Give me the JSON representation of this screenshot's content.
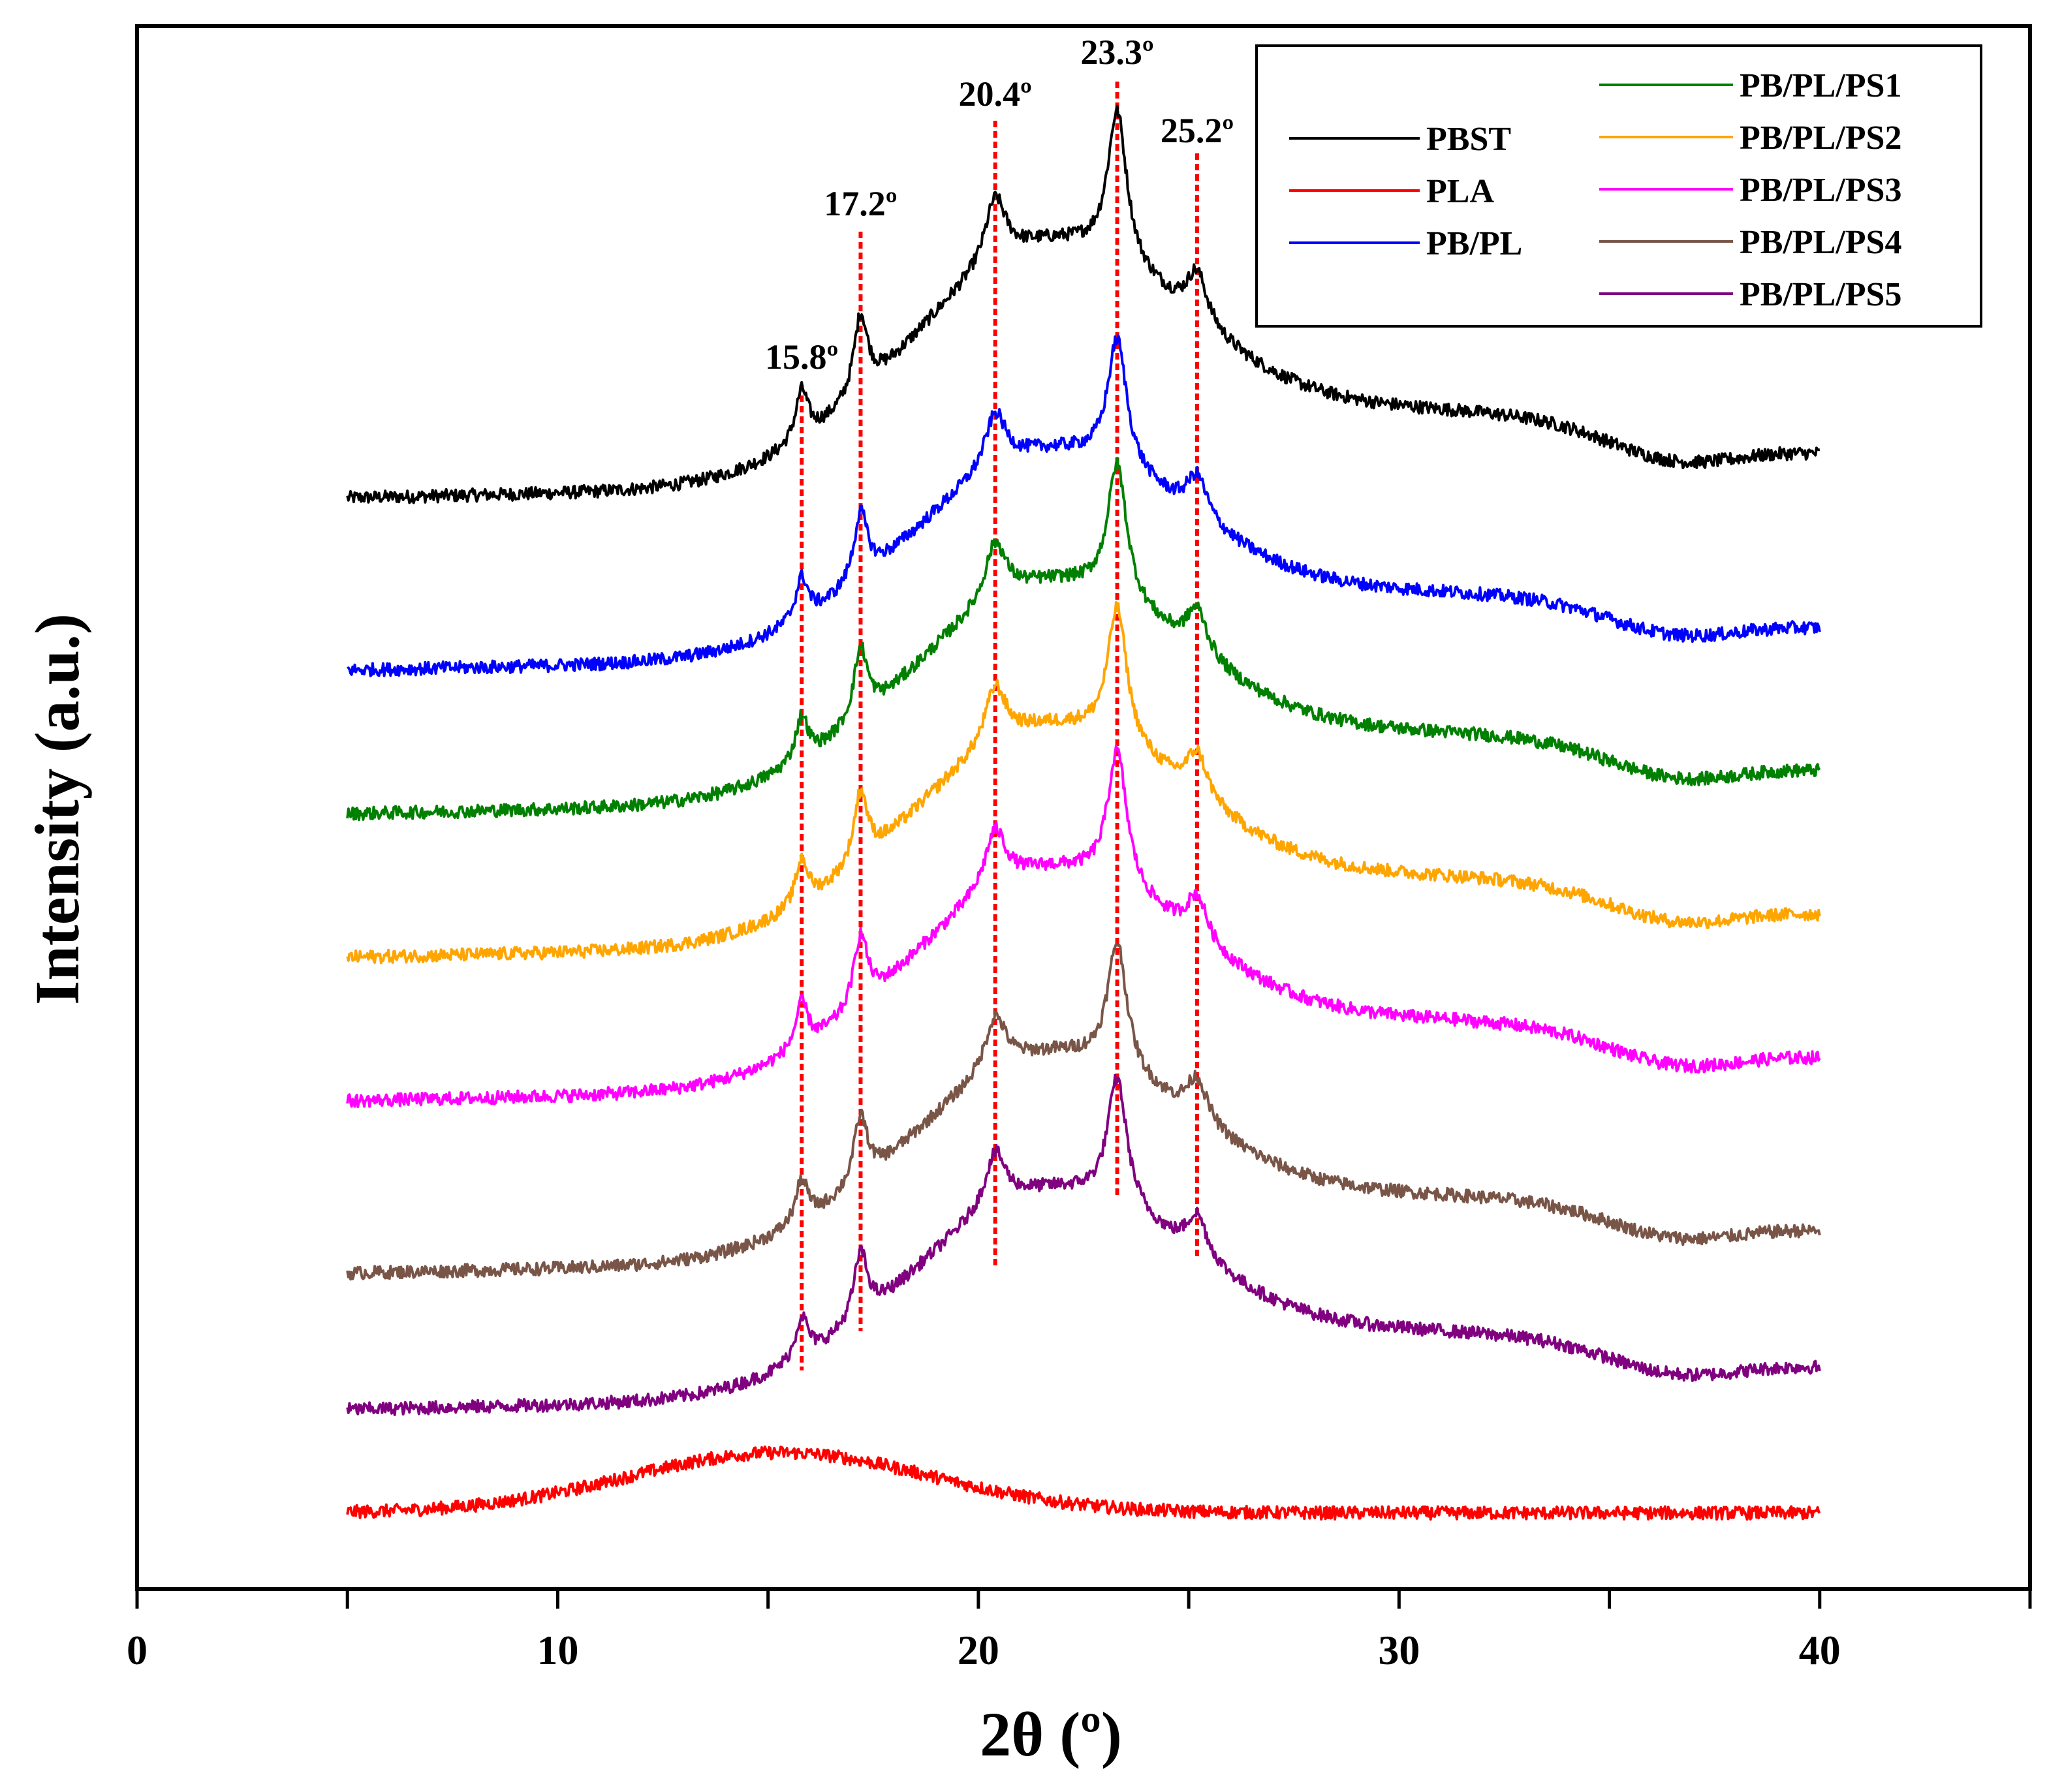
{
  "chart_data": {
    "type": "line",
    "title": "",
    "xlabel": "2θ (º)",
    "ylabel": "Intensity (a.u.)",
    "xlim": [
      0,
      45
    ],
    "x_ticks": [
      0,
      10,
      20,
      30,
      40
    ],
    "x_range_data": [
      5,
      40
    ],
    "y_ticks_shown": false,
    "grid": false,
    "legend_position": "top-right",
    "peak_markers": [
      {
        "x": 15.8,
        "label": "15.8º"
      },
      {
        "x": 17.2,
        "label": "17.2º"
      },
      {
        "x": 20.4,
        "label": "20.4º"
      },
      {
        "x": 23.3,
        "label": "23.3º"
      },
      {
        "x": 25.2,
        "label": "25.2º"
      }
    ],
    "series": [
      {
        "name": "PBST",
        "color": "#000000",
        "offset": 7.1,
        "crystalline": 1.0
      },
      {
        "name": "PLA",
        "color": "#ff0000",
        "offset": 0.0,
        "crystalline": 0.0
      },
      {
        "name": "PB/PL",
        "color": "#0000ff",
        "offset": 5.9,
        "crystalline": 0.85
      },
      {
        "name": "PB/PL/PS1",
        "color": "#008000",
        "offset": 4.9,
        "crystalline": 0.9
      },
      {
        "name": "PB/PL/PS2",
        "color": "#ffa500",
        "offset": 3.9,
        "crystalline": 0.9
      },
      {
        "name": "PB/PL/PS3",
        "color": "#ff00ff",
        "offset": 2.9,
        "crystalline": 0.9
      },
      {
        "name": "PB/PL/PS4",
        "color": "#795548",
        "offset": 1.7,
        "crystalline": 0.85
      },
      {
        "name": "PB/PL/PS5",
        "color": "#800080",
        "offset": 0.75,
        "crystalline": 0.85
      }
    ]
  }
}
